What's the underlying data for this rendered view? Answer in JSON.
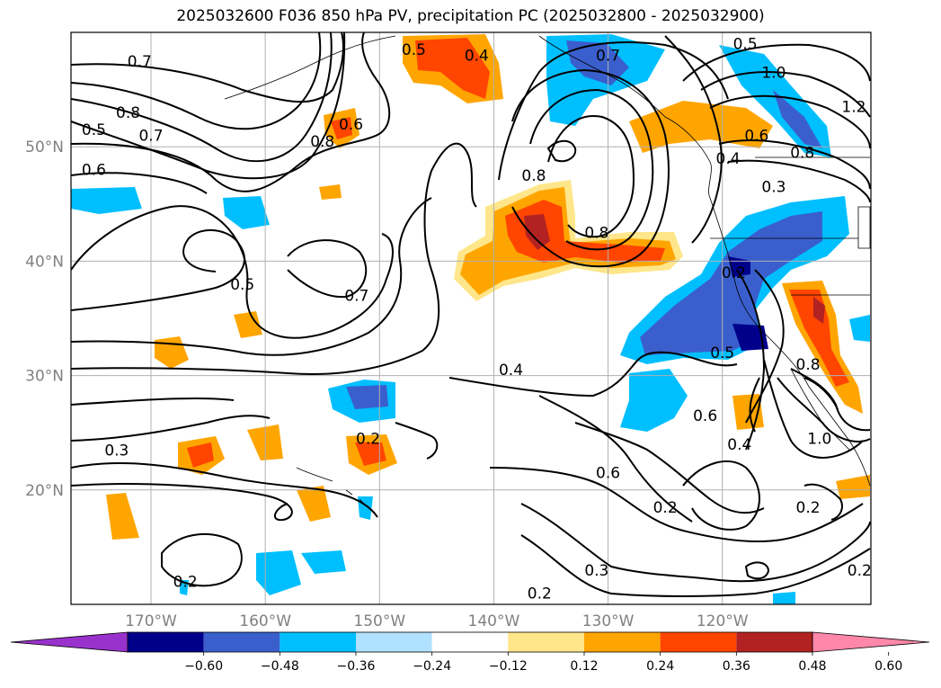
{
  "title": "2025032600 F036 850 hPa PV, precipitation PC (2025032800 - 2025032900)",
  "chart_data": {
    "type": "heatmap",
    "map": {
      "lon_range": [
        -177,
        -107
      ],
      "lat_range": [
        10,
        60
      ],
      "lat_ticks": [
        20,
        30,
        40,
        50
      ],
      "lat_tick_labels": [
        "20°N",
        "30°N",
        "40°N",
        "50°N"
      ],
      "lon_ticks": [
        -170,
        -160,
        -150,
        -140,
        -130,
        -120
      ],
      "lon_tick_labels": [
        "170°W",
        "160°W",
        "150°W",
        "140°W",
        "130°W",
        "120°W"
      ],
      "grid": true
    },
    "colorbar": {
      "orientation": "horizontal",
      "extend": "both",
      "levels": [
        -0.72,
        -0.6,
        -0.48,
        -0.36,
        -0.24,
        -0.12,
        0.12,
        0.24,
        0.36,
        0.48,
        0.6,
        0.72
      ],
      "tick_values": [
        -0.6,
        -0.48,
        -0.36,
        -0.24,
        -0.12,
        0.12,
        0.24,
        0.36,
        0.48,
        0.6
      ],
      "tick_labels": [
        "−0.60",
        "−0.48",
        "−0.36",
        "−0.24",
        "−0.12",
        "0.12",
        "0.24",
        "0.36",
        "0.48",
        "0.60"
      ],
      "colors": [
        "#9932CC",
        "#00008B",
        "#3A5FCD",
        "#00BFFF",
        "#B0E2FF",
        "#FFFFFF",
        "#FFE68A",
        "#FFA500",
        "#FF4500",
        "#B22222",
        "#FF88AA"
      ]
    },
    "contours": {
      "variable": "850 hPa PV",
      "labels": [
        {
          "text": "0.7",
          "lon": -171,
          "lat": 57.5
        },
        {
          "text": "0.8",
          "lon": -172,
          "lat": 53
        },
        {
          "text": "0.7",
          "lon": -170,
          "lat": 51
        },
        {
          "text": "0.5",
          "lon": -175,
          "lat": 51.5
        },
        {
          "text": "0.6",
          "lon": -175,
          "lat": 48
        },
        {
          "text": "0.8",
          "lon": -155,
          "lat": 50.5
        },
        {
          "text": "0.6",
          "lon": -152.5,
          "lat": 52
        },
        {
          "text": "0.5",
          "lon": -162,
          "lat": 38
        },
        {
          "text": "0.7",
          "lon": -152,
          "lat": 37
        },
        {
          "text": "0.5",
          "lon": -147,
          "lat": 58.5
        },
        {
          "text": "0.4",
          "lon": -141.5,
          "lat": 58
        },
        {
          "text": "0.7",
          "lon": -130,
          "lat": 58
        },
        {
          "text": "0.8",
          "lon": -136.5,
          "lat": 47.5
        },
        {
          "text": "0.8",
          "lon": -131,
          "lat": 42.5
        },
        {
          "text": "0.5",
          "lon": -118,
          "lat": 59
        },
        {
          "text": "1.0",
          "lon": -115.5,
          "lat": 56.5
        },
        {
          "text": "1.2",
          "lon": -108.5,
          "lat": 53.5
        },
        {
          "text": "0.6",
          "lon": -117,
          "lat": 51
        },
        {
          "text": "0.8",
          "lon": -113,
          "lat": 49.5
        },
        {
          "text": "0.4",
          "lon": -119.5,
          "lat": 49
        },
        {
          "text": "0.3",
          "lon": -115.5,
          "lat": 46.5
        },
        {
          "text": "0.2",
          "lon": -119,
          "lat": 39
        },
        {
          "text": "0.4",
          "lon": -138.5,
          "lat": 30.5
        },
        {
          "text": "0.5",
          "lon": -120,
          "lat": 32
        },
        {
          "text": "0.6",
          "lon": -121.5,
          "lat": 26.5
        },
        {
          "text": "0.8",
          "lon": -112.5,
          "lat": 31
        },
        {
          "text": "1.0",
          "lon": -111.5,
          "lat": 24.5
        },
        {
          "text": "0.4",
          "lon": -118.5,
          "lat": 24
        },
        {
          "text": "0.6",
          "lon": -130,
          "lat": 21.5
        },
        {
          "text": "0.2",
          "lon": -125,
          "lat": 18.5
        },
        {
          "text": "0.2",
          "lon": -112.5,
          "lat": 18.5
        },
        {
          "text": "0.2",
          "lon": -108,
          "lat": 13
        },
        {
          "text": "0.2",
          "lon": -151,
          "lat": 24.5
        },
        {
          "text": "0.3",
          "lon": -173,
          "lat": 23.5
        },
        {
          "text": "0.3",
          "lon": -131,
          "lat": 13
        },
        {
          "text": "0.2",
          "lon": -167,
          "lat": 12
        },
        {
          "text": "0.2",
          "lon": -136,
          "lat": 11
        }
      ]
    }
  }
}
